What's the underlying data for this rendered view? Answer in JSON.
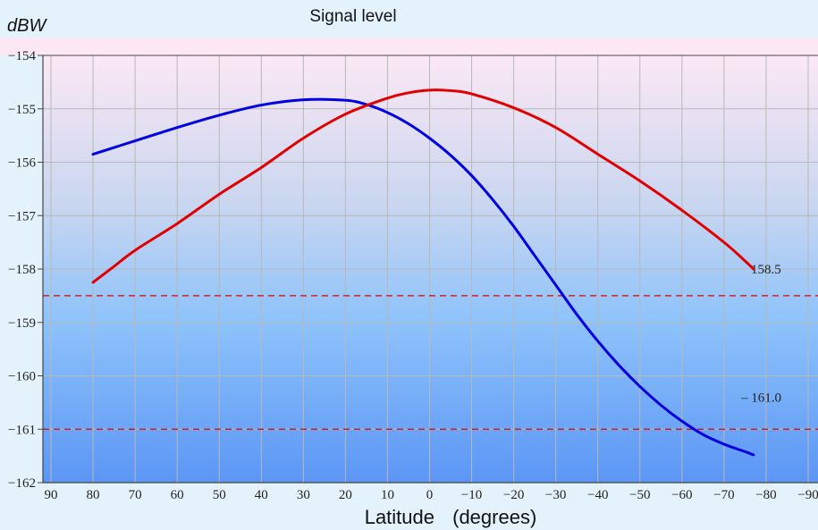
{
  "chart_data": {
    "type": "line",
    "title": "Signal level",
    "ylabel": "dBW",
    "xlabel": "Latitude",
    "xlabel_unit": "(degrees)",
    "xlim": [
      90,
      -90
    ],
    "ylim": [
      -162,
      -154
    ],
    "x_ticks": [
      90,
      80,
      70,
      60,
      50,
      40,
      30,
      20,
      10,
      0,
      -10,
      -20,
      -30,
      -40,
      -50,
      -60,
      -70,
      -80,
      -90
    ],
    "x_tick_labels": [
      "90",
      "80",
      "70",
      "60",
      "50",
      "40",
      "30",
      "20",
      "10",
      "0",
      "−10",
      "−20",
      "−30",
      "−40",
      "−50",
      "−60",
      "−70",
      "−80",
      "−90"
    ],
    "y_ticks": [
      -154,
      -155,
      -156,
      -157,
      -158,
      -159,
      -160,
      -161,
      -162
    ],
    "y_tick_labels": [
      "−154",
      "−155",
      "−156",
      "−157",
      "−158",
      "−159",
      "−160",
      "−161",
      "−162"
    ],
    "grid": true,
    "series": [
      {
        "color": "#0000e0",
        "x": [
          80,
          70,
          60,
          50,
          40,
          30,
          20,
          15,
          10,
          5,
          0,
          -5,
          -10,
          -15,
          -20,
          -25,
          -30,
          -35,
          -40,
          -45,
          -50,
          -55,
          -60,
          -65,
          -70,
          -75,
          -77
        ],
        "y": [
          -155.85,
          -155.6,
          -155.35,
          -155.12,
          -154.93,
          -154.83,
          -154.84,
          -154.92,
          -155.07,
          -155.28,
          -155.55,
          -155.87,
          -156.25,
          -156.7,
          -157.2,
          -157.75,
          -158.3,
          -158.85,
          -159.35,
          -159.8,
          -160.2,
          -160.55,
          -160.85,
          -161.1,
          -161.28,
          -161.42,
          -161.48
        ]
      },
      {
        "color": "#e00000",
        "x": [
          80,
          75,
          70,
          60,
          50,
          40,
          30,
          20,
          10,
          5,
          0,
          -5,
          -10,
          -20,
          -30,
          -40,
          -50,
          -60,
          -70,
          -75,
          -77
        ],
        "y": [
          -158.25,
          -157.95,
          -157.65,
          -157.15,
          -156.6,
          -156.1,
          -155.55,
          -155.1,
          -154.8,
          -154.7,
          -154.65,
          -154.66,
          -154.72,
          -154.98,
          -155.35,
          -155.85,
          -156.35,
          -156.9,
          -157.5,
          -157.85,
          -158.0
        ]
      }
    ],
    "reference_lines": [
      {
        "y": -158.5,
        "label": "158.5",
        "color": "#e00000"
      },
      {
        "y": -161.0,
        "label": "– 161.0",
        "color": "#e00000"
      }
    ]
  }
}
